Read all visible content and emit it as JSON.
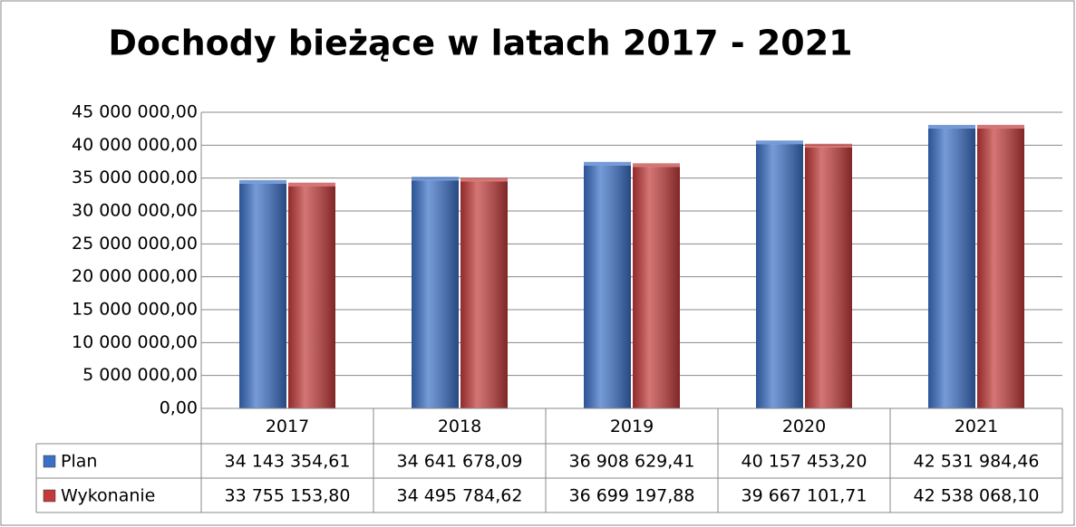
{
  "chart_data": {
    "type": "bar",
    "title": "Dochody bieżące w latach 2017 - 2021",
    "categories": [
      "2017",
      "2018",
      "2019",
      "2020",
      "2021"
    ],
    "series": [
      {
        "name": "Plan",
        "color": "#3b70c6",
        "values": [
          34143354.61,
          34641678.09,
          36908629.41,
          40157453.2,
          42531984.46
        ],
        "value_labels": [
          "34 143 354,61",
          "34 641 678,09",
          "36 908 629,41",
          "40 157 453,20",
          "42 531 984,46"
        ]
      },
      {
        "name": "Wykonanie",
        "color": "#c33a3a",
        "values": [
          33755153.8,
          34495784.62,
          36699197.88,
          39667101.71,
          42538068.1
        ],
        "value_labels": [
          "33 755 153,80",
          "34 495 784,62",
          "36 699 197,88",
          "39 667 101,71",
          "42 538 068,10"
        ]
      }
    ],
    "ylim": [
      0,
      45000000
    ],
    "yticks": [
      {
        "value": 0,
        "label": "0,00"
      },
      {
        "value": 5000000,
        "label": "5 000 000,00"
      },
      {
        "value": 10000000,
        "label": "10 000 000,00"
      },
      {
        "value": 15000000,
        "label": "15 000 000,00"
      },
      {
        "value": 20000000,
        "label": "20 000 000,00"
      },
      {
        "value": 25000000,
        "label": "25 000 000,00"
      },
      {
        "value": 30000000,
        "label": "30 000 000,00"
      },
      {
        "value": 35000000,
        "label": "35 000 000,00"
      },
      {
        "value": 40000000,
        "label": "40 000 000,00"
      },
      {
        "value": 45000000,
        "label": "45 000 000,00"
      }
    ],
    "grid": true
  }
}
